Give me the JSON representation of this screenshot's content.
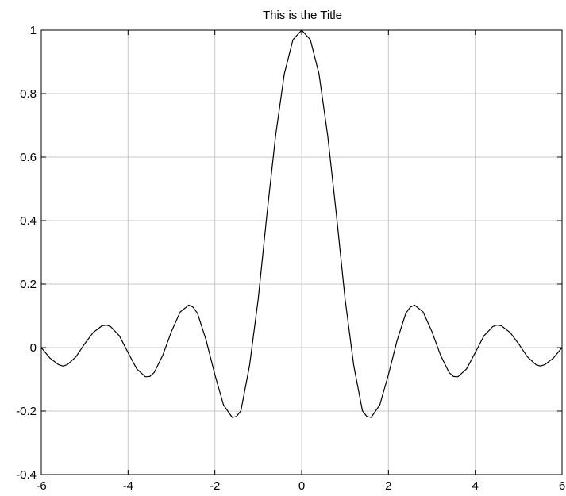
{
  "chart_data": {
    "type": "line",
    "title": "This is the Title",
    "xlabel": "",
    "ylabel": "",
    "xlim": [
      -6,
      6
    ],
    "ylim": [
      -0.4,
      1
    ],
    "xticks": [
      -6,
      -4,
      -2,
      0,
      2,
      4,
      6
    ],
    "xtick_labels": [
      "-6",
      "-4",
      "-2",
      "0",
      "2",
      "4",
      "6"
    ],
    "yticks": [
      -0.4,
      -0.2,
      0,
      0.2,
      0.4,
      0.6,
      0.8,
      1
    ],
    "ytick_labels": [
      "-0.4",
      "-0.2",
      "0",
      "0.2",
      "0.4",
      "0.6",
      "0.8",
      "1"
    ],
    "grid": true,
    "colors": {
      "line": "#000000",
      "grid": "#c8c8c8",
      "axes": "#000000",
      "background": "#ffffff"
    },
    "series": [
      {
        "x": [
          -6.0,
          -5.8,
          -5.6,
          -5.5,
          -5.4,
          -5.2,
          -5.0,
          -4.8,
          -4.6,
          -4.5,
          -4.4,
          -4.2,
          -4.0,
          -3.8,
          -3.6,
          -3.5,
          -3.4,
          -3.2,
          -3.0,
          -2.8,
          -2.6,
          -2.5,
          -2.4,
          -2.2,
          -2.0,
          -1.8,
          -1.6,
          -1.5,
          -1.4,
          -1.2,
          -1.0,
          -0.8,
          -0.6,
          -0.4,
          -0.2,
          0.0,
          0.2,
          0.4,
          0.6,
          0.8,
          1.0,
          1.2,
          1.4,
          1.5,
          1.6,
          1.8,
          2.0,
          2.2,
          2.4,
          2.5,
          2.6,
          2.8,
          3.0,
          3.2,
          3.4,
          3.5,
          3.6,
          3.8,
          4.0,
          4.2,
          4.4,
          4.5,
          4.6,
          4.8,
          5.0,
          5.2,
          5.4,
          5.5,
          5.6,
          5.8,
          6.0
        ],
        "values": [
          0.0,
          -0.033,
          -0.054,
          -0.058,
          -0.054,
          -0.029,
          0.012,
          0.048,
          0.069,
          0.071,
          0.066,
          0.037,
          -0.016,
          -0.067,
          -0.092,
          -0.091,
          -0.079,
          -0.024,
          0.051,
          0.112,
          0.134,
          0.127,
          0.108,
          0.023,
          -0.085,
          -0.181,
          -0.22,
          -0.217,
          -0.199,
          -0.056,
          0.154,
          0.42,
          0.668,
          0.862,
          0.97,
          1.0,
          0.97,
          0.862,
          0.668,
          0.42,
          0.154,
          -0.056,
          -0.199,
          -0.217,
          -0.22,
          -0.181,
          -0.085,
          0.023,
          0.108,
          0.127,
          0.134,
          0.112,
          0.051,
          -0.024,
          -0.079,
          -0.091,
          -0.092,
          -0.067,
          -0.016,
          0.037,
          0.066,
          0.071,
          0.069,
          0.048,
          0.012,
          -0.029,
          -0.054,
          -0.058,
          -0.054,
          -0.033,
          0.0
        ]
      }
    ]
  }
}
